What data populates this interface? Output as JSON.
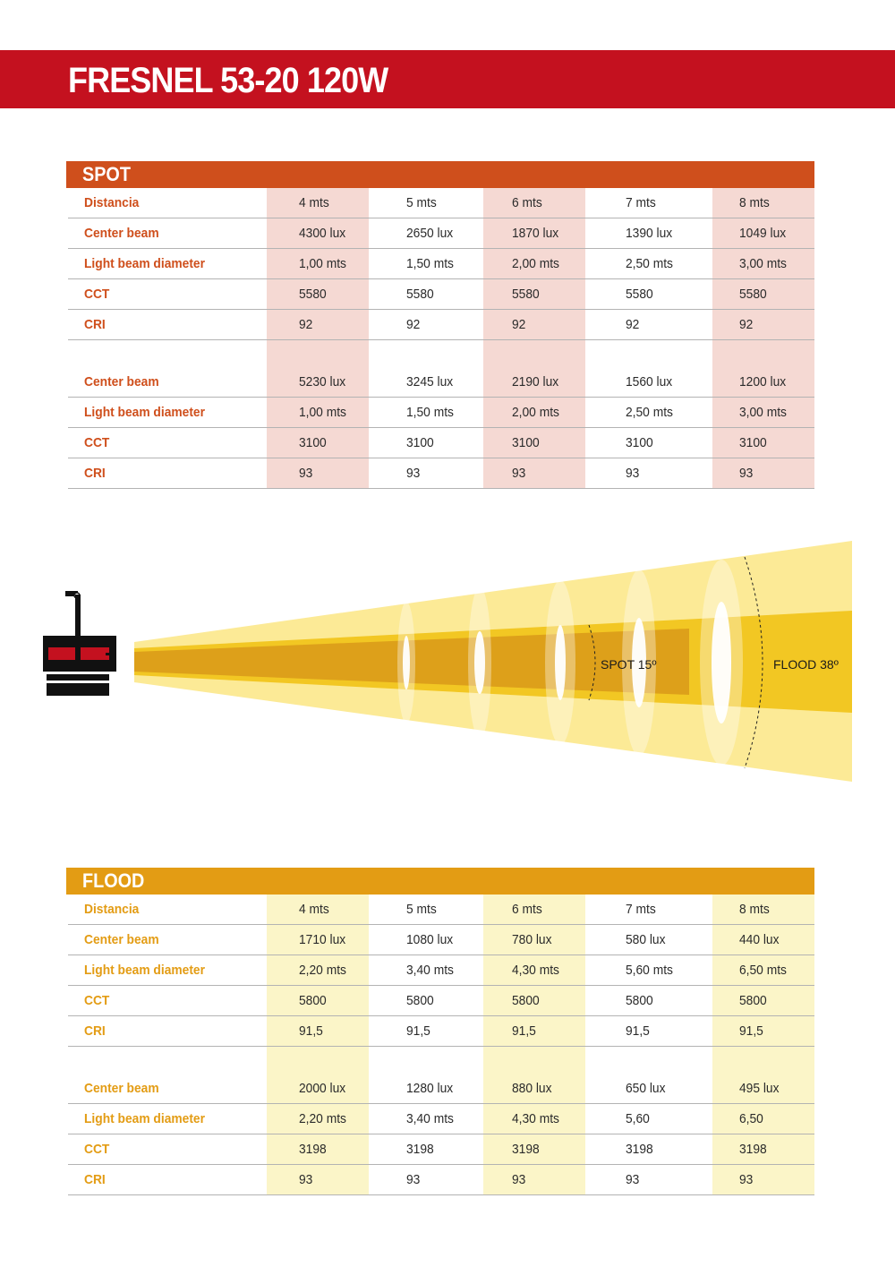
{
  "title": "FRESNEL 53-20 120W",
  "colors": {
    "title_bar": "#c4111f",
    "spot_header": "#cf4f1c",
    "spot_label": "#cf4f1c",
    "spot_shade": "#f5d9d3",
    "flood_header": "#e39c14",
    "flood_label": "#e39c14",
    "flood_shade": "#fbf5c8",
    "beam_outer": "#fcea96",
    "beam_inner": "#f1c21e",
    "beam_core": "#cf8e1b"
  },
  "spot": {
    "header": "SPOT",
    "distance_label": "Distancia",
    "distances": [
      "4 mts",
      "5 mts",
      "6 mts",
      "7 mts",
      "8 mts"
    ],
    "group1": [
      {
        "label": "Center beam",
        "values": [
          "4300 lux",
          "2650 lux",
          "1870 lux",
          "1390 lux",
          "1049 lux"
        ]
      },
      {
        "label": "Light beam diameter",
        "values": [
          "1,00 mts",
          "1,50 mts",
          "2,00 mts",
          "2,50 mts",
          "3,00 mts"
        ]
      },
      {
        "label": "CCT",
        "values": [
          "5580",
          "5580",
          "5580",
          "5580",
          "5580"
        ]
      },
      {
        "label": "CRI",
        "values": [
          "92",
          "92",
          "92",
          "92",
          "92"
        ]
      }
    ],
    "group2": [
      {
        "label": "Center beam",
        "values": [
          "5230 lux",
          "3245 lux",
          "2190 lux",
          "1560 lux",
          "1200 lux"
        ]
      },
      {
        "label": "Light beam diameter",
        "values": [
          "1,00 mts",
          "1,50 mts",
          "2,00 mts",
          "2,50 mts",
          "3,00 mts"
        ]
      },
      {
        "label": "CCT",
        "values": [
          "3100",
          "3100",
          "3100",
          "3100",
          "3100"
        ]
      },
      {
        "label": "CRI",
        "values": [
          "93",
          "93",
          "93",
          "93",
          "93"
        ]
      }
    ]
  },
  "flood": {
    "header": "FLOOD",
    "distance_label": "Distancia",
    "distances": [
      "4 mts",
      "5 mts",
      "6 mts",
      "7 mts",
      "8 mts"
    ],
    "group1": [
      {
        "label": "Center beam",
        "values": [
          "1710 lux",
          "1080 lux",
          "780 lux",
          "580 lux",
          "440 lux"
        ]
      },
      {
        "label": "Light beam diameter",
        "values": [
          "2,20 mts",
          "3,40 mts",
          "4,30 mts",
          "5,60 mts",
          "6,50 mts"
        ]
      },
      {
        "label": "CCT",
        "values": [
          "5800",
          "5800",
          "5800",
          "5800",
          "5800"
        ]
      },
      {
        "label": "CRI",
        "values": [
          "91,5",
          "91,5",
          "91,5",
          "91,5",
          "91,5"
        ]
      }
    ],
    "group2": [
      {
        "label": "Center beam",
        "values": [
          "2000 lux",
          "1280 lux",
          "880 lux",
          "650 lux",
          "495 lux"
        ]
      },
      {
        "label": "Light beam diameter",
        "values": [
          "2,20 mts",
          "3,40 mts",
          "4,30 mts",
          "5,60",
          "6,50"
        ]
      },
      {
        "label": "CCT",
        "values": [
          "3198",
          "3198",
          "3198",
          "3198",
          "3198"
        ]
      },
      {
        "label": "CRI",
        "values": [
          "93",
          "93",
          "93",
          "93",
          "93"
        ]
      }
    ]
  },
  "diagram": {
    "spot_label": "SPOT 15º",
    "flood_label": "FLOOD 38º",
    "lamp_icon": "fresnel-lamp-icon"
  }
}
